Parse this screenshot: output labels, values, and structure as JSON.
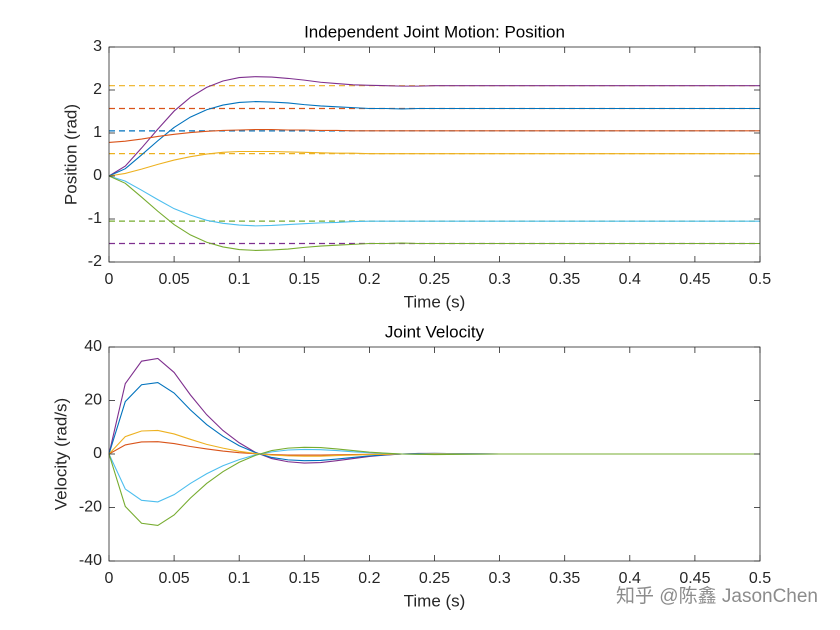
{
  "chart_data": [
    {
      "type": "line",
      "title": "Independent Joint Motion: Position",
      "xlabel": "Time (s)",
      "ylabel": "Position (rad)",
      "x": [
        0,
        0.0125,
        0.025,
        0.0375,
        0.05,
        0.0625,
        0.075,
        0.0875,
        0.1,
        0.1125,
        0.125,
        0.1375,
        0.15,
        0.1625,
        0.175,
        0.1875,
        0.2,
        0.2125,
        0.225,
        0.2375,
        0.25,
        0.3,
        0.35,
        0.4,
        0.45,
        0.5
      ],
      "series": [
        {
          "color": "#7E2F8E",
          "values": [
            0,
            0.23,
            0.65,
            1.09,
            1.51,
            1.83,
            2.06,
            2.21,
            2.29,
            2.31,
            2.3,
            2.27,
            2.23,
            2.18,
            2.15,
            2.12,
            2.11,
            2.1,
            2.09,
            2.09,
            2.1,
            2.1,
            2.1,
            2.1,
            2.1,
            2.1
          ]
        },
        {
          "color": "#0072BD",
          "values": [
            0,
            0.17,
            0.49,
            0.82,
            1.13,
            1.37,
            1.54,
            1.65,
            1.71,
            1.73,
            1.72,
            1.7,
            1.66,
            1.63,
            1.61,
            1.59,
            1.57,
            1.57,
            1.56,
            1.57,
            1.57,
            1.57,
            1.57,
            1.57,
            1.57,
            1.57
          ]
        },
        {
          "color": "#D95319",
          "values": [
            0.78,
            0.81,
            0.86,
            0.92,
            0.97,
            1.01,
            1.04,
            1.06,
            1.07,
            1.08,
            1.08,
            1.07,
            1.07,
            1.06,
            1.06,
            1.05,
            1.05,
            1.05,
            1.05,
            1.05,
            1.05,
            1.05,
            1.05,
            1.05,
            1.05,
            1.05
          ]
        },
        {
          "color": "#EDB120",
          "values": [
            0,
            0.06,
            0.16,
            0.27,
            0.37,
            0.45,
            0.51,
            0.55,
            0.57,
            0.57,
            0.57,
            0.56,
            0.55,
            0.54,
            0.53,
            0.53,
            0.52,
            0.52,
            0.52,
            0.52,
            0.52,
            0.52,
            0.52,
            0.52,
            0.52,
            0.52
          ]
        },
        {
          "color": "#4DBEEE",
          "values": [
            0,
            -0.12,
            -0.33,
            -0.55,
            -0.76,
            -0.91,
            -1.03,
            -1.1,
            -1.14,
            -1.16,
            -1.15,
            -1.13,
            -1.11,
            -1.09,
            -1.08,
            -1.06,
            -1.05,
            -1.05,
            -1.05,
            -1.05,
            -1.05,
            -1.05,
            -1.05,
            -1.05,
            -1.05,
            -1.05
          ]
        },
        {
          "color": "#77AC30",
          "values": [
            0,
            -0.17,
            -0.49,
            -0.82,
            -1.13,
            -1.37,
            -1.54,
            -1.65,
            -1.71,
            -1.73,
            -1.72,
            -1.7,
            -1.66,
            -1.63,
            -1.61,
            -1.59,
            -1.57,
            -1.57,
            -1.56,
            -1.57,
            -1.57,
            -1.57,
            -1.57,
            -1.57,
            -1.57,
            -1.57
          ]
        }
      ],
      "reference_lines": [
        {
          "value": 2.1,
          "color": "#EDB120"
        },
        {
          "value": 1.57,
          "color": "#D95319"
        },
        {
          "value": 1.05,
          "color": "#0072BD"
        },
        {
          "value": 0.52,
          "color": "#EDB120"
        },
        {
          "value": -1.05,
          "color": "#77AC30"
        },
        {
          "value": -1.57,
          "color": "#7E2F8E"
        }
      ],
      "xlim": [
        0,
        0.5
      ],
      "xticks": [
        0,
        0.05,
        0.1,
        0.15,
        0.2,
        0.25,
        0.3,
        0.35,
        0.4,
        0.45,
        0.5
      ],
      "ylim": [
        -2,
        3
      ],
      "yticks": [
        -2,
        -1,
        0,
        1,
        2,
        3
      ]
    },
    {
      "type": "line",
      "title": "Joint Velocity",
      "xlabel": "Time (s)",
      "ylabel": "Velocity (rad/s)",
      "x": [
        0,
        0.0125,
        0.025,
        0.0375,
        0.05,
        0.0625,
        0.075,
        0.0875,
        0.1,
        0.1125,
        0.125,
        0.1375,
        0.15,
        0.1625,
        0.175,
        0.1875,
        0.2,
        0.2125,
        0.225,
        0.2375,
        0.25,
        0.3,
        0.35,
        0.4,
        0.45,
        0.5
      ],
      "series": [
        {
          "color": "#7E2F8E",
          "values": [
            0,
            26.3,
            34.7,
            35.7,
            30.5,
            22.1,
            14.7,
            8.8,
            4.2,
            0.6,
            -1.7,
            -2.9,
            -3.4,
            -3.2,
            -2.5,
            -1.7,
            -0.9,
            -0.4,
            0,
            0.2,
            0.2,
            0,
            0,
            0,
            0,
            0
          ]
        },
        {
          "color": "#0072BD",
          "values": [
            0,
            19.6,
            25.9,
            26.7,
            22.8,
            16.5,
            11.0,
            6.6,
            3.1,
            0.5,
            -1.3,
            -2.2,
            -2.5,
            -2.4,
            -1.9,
            -1.3,
            -0.7,
            -0.3,
            0,
            0.1,
            0.2,
            0,
            0,
            0,
            0,
            0
          ]
        },
        {
          "color": "#D95319",
          "values": [
            0,
            3.4,
            4.5,
            4.6,
            3.9,
            2.8,
            1.9,
            1.1,
            0.5,
            0.1,
            -0.2,
            -0.4,
            -0.4,
            -0.4,
            -0.3,
            -0.2,
            -0.1,
            -0.1,
            0,
            0,
            0,
            0,
            0,
            0,
            0,
            0
          ]
        },
        {
          "color": "#EDB120",
          "values": [
            0,
            6.5,
            8.6,
            8.8,
            7.5,
            5.5,
            3.6,
            2.2,
            1.0,
            0.2,
            -0.4,
            -0.7,
            -0.8,
            -0.8,
            -0.6,
            -0.4,
            -0.2,
            -0.1,
            0,
            0,
            0.1,
            0,
            0,
            0,
            0,
            0
          ]
        },
        {
          "color": "#4DBEEE",
          "values": [
            0,
            -13.1,
            -17.3,
            -17.9,
            -15.2,
            -11.0,
            -7.4,
            -4.4,
            -2.1,
            -0.3,
            0.8,
            1.5,
            1.7,
            1.6,
            1.3,
            0.8,
            0.5,
            0.2,
            0,
            -0.1,
            -0.1,
            0,
            0,
            0,
            0,
            0
          ]
        },
        {
          "color": "#77AC30",
          "values": [
            0,
            -19.6,
            -25.9,
            -26.7,
            -22.8,
            -16.5,
            -11.0,
            -6.6,
            -3.1,
            -0.5,
            1.3,
            2.2,
            2.5,
            2.4,
            1.9,
            1.3,
            0.7,
            0.3,
            0,
            -0.1,
            -0.2,
            0,
            0,
            0,
            0,
            0
          ]
        }
      ],
      "xlim": [
        0,
        0.5
      ],
      "xticks": [
        0,
        0.05,
        0.1,
        0.15,
        0.2,
        0.25,
        0.3,
        0.35,
        0.4,
        0.45,
        0.5
      ],
      "ylim": [
        -40,
        40
      ],
      "yticks": [
        -40,
        -20,
        0,
        20,
        40
      ]
    }
  ],
  "watermark": "知乎 @陈鑫 JasonChen"
}
